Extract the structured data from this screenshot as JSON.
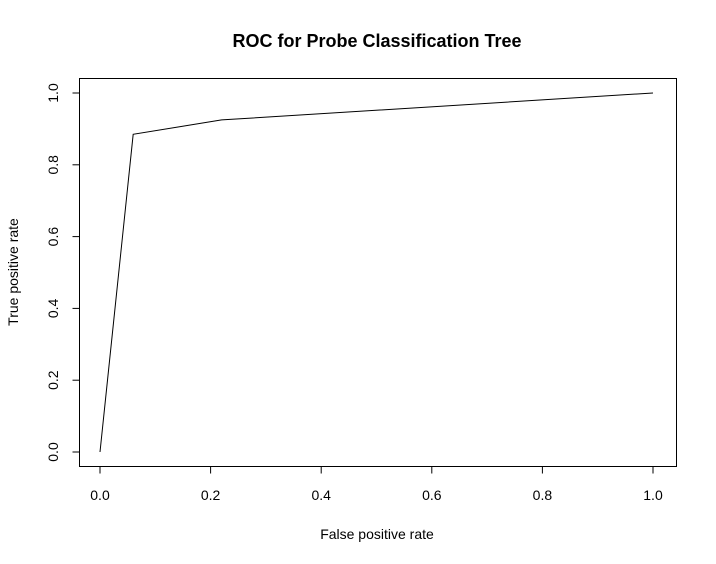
{
  "chart_data": {
    "type": "line",
    "title": "ROC for Probe Classification Tree",
    "xlabel": "False positive rate",
    "ylabel": "True positive rate",
    "xlim": [
      0.0,
      1.0
    ],
    "ylim": [
      0.0,
      1.0
    ],
    "x_ticks": [
      "0.0",
      "0.2",
      "0.4",
      "0.6",
      "0.8",
      "1.0"
    ],
    "y_ticks": [
      "0.0",
      "0.2",
      "0.4",
      "0.6",
      "0.8",
      "1.0"
    ],
    "grid": false,
    "series": [
      {
        "x": [
          0.0,
          0.06,
          0.22,
          1.0
        ],
        "y": [
          0.0,
          0.885,
          0.925,
          1.0
        ]
      }
    ]
  }
}
